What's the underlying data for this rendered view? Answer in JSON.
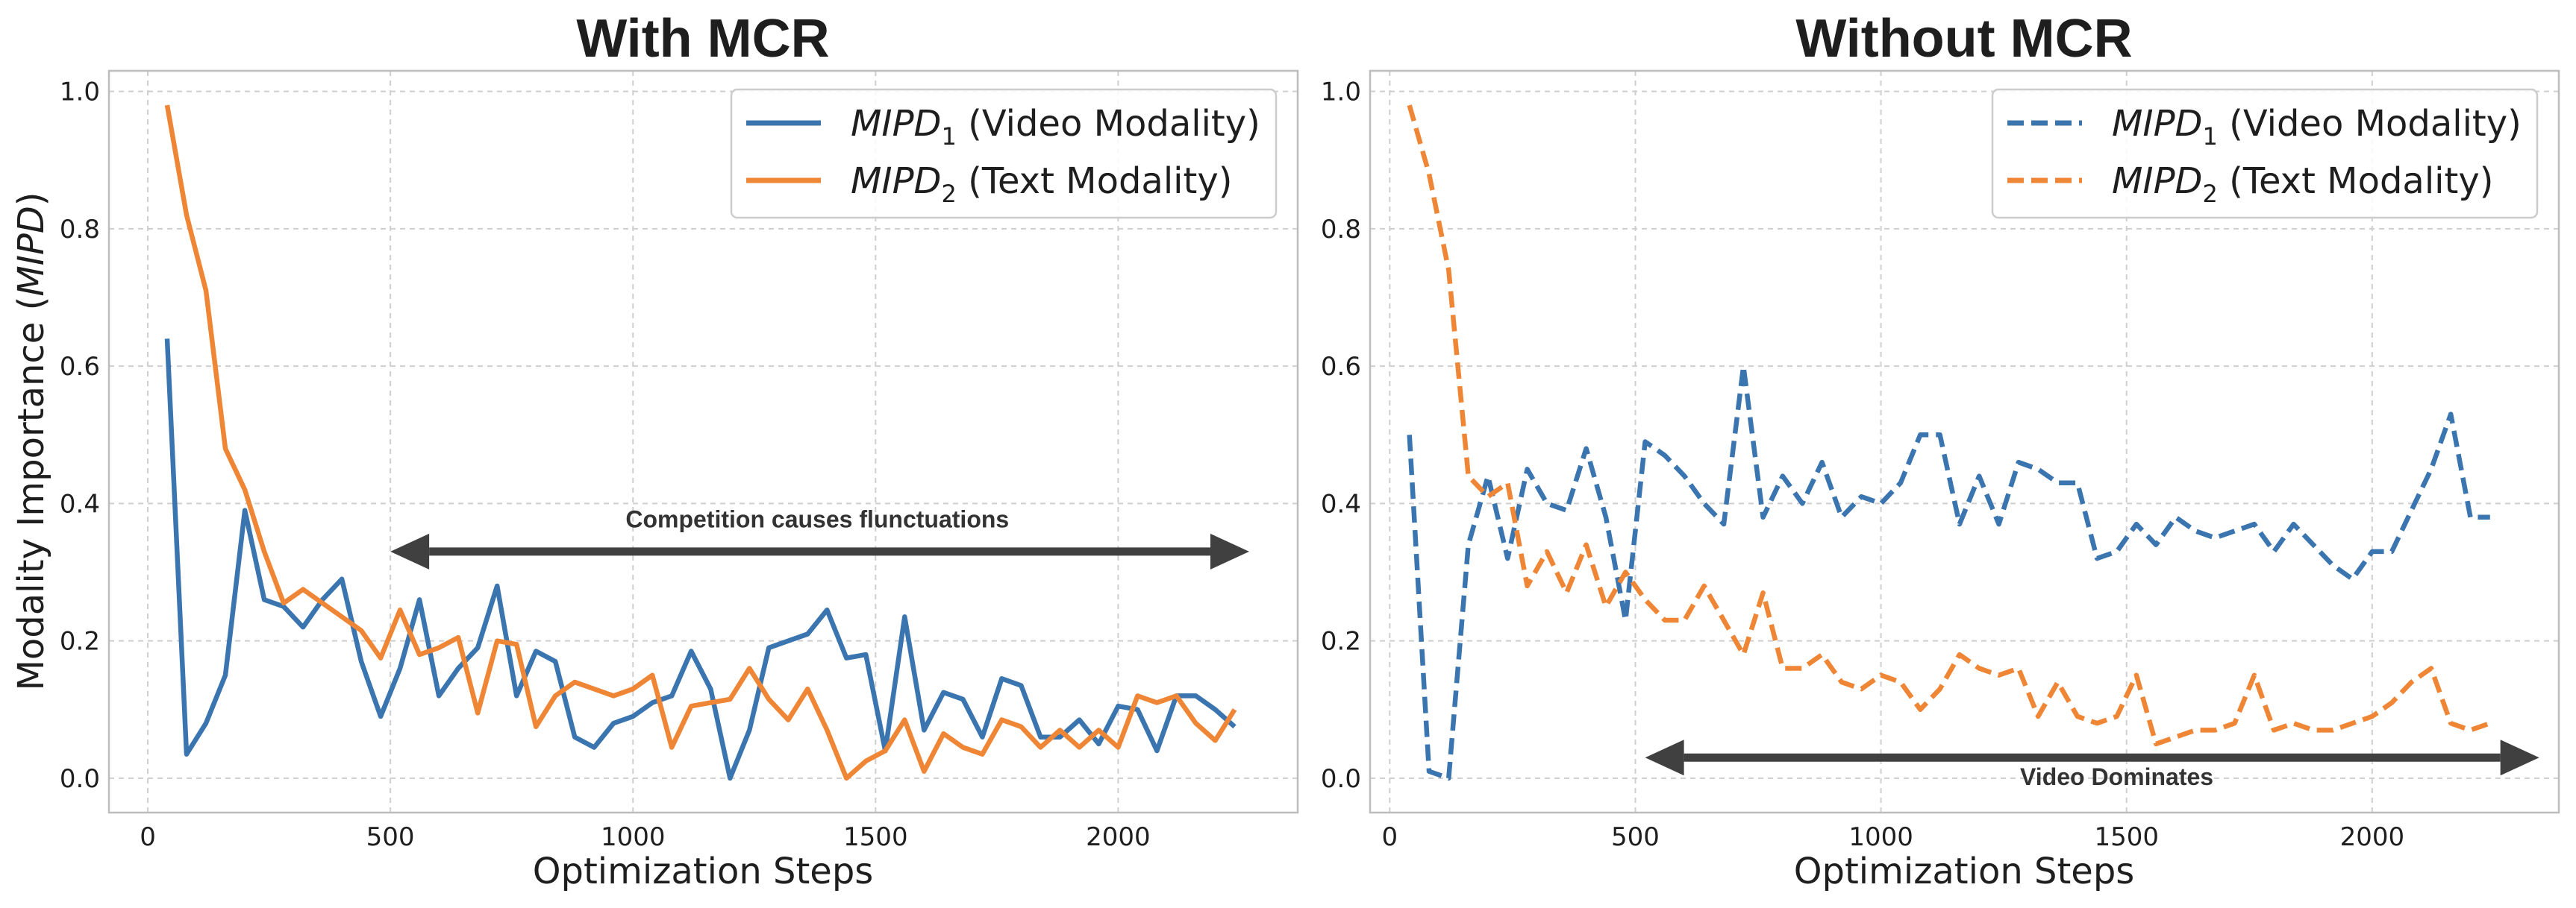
{
  "chart_data": [
    {
      "type": "line",
      "title": "With MCR",
      "xlabel": "Optimization Steps",
      "ylabel_prefix": "Modality Importance (",
      "ylabel_var": "MIPD",
      "ylabel_suffix": ")",
      "xlim": [
        -80,
        2370
      ],
      "ylim": [
        -0.05,
        1.03
      ],
      "xticks": [
        0,
        500,
        1000,
        1500,
        2000
      ],
      "xtick_labels": [
        "0",
        "500",
        "1000",
        "1500",
        "2000"
      ],
      "yticks": [
        0.0,
        0.2,
        0.4,
        0.6,
        0.8,
        1.0
      ],
      "ytick_labels": [
        "0.0",
        "0.2",
        "0.4",
        "0.6",
        "0.8",
        "1.0"
      ],
      "grid": true,
      "legend_position": "upper-right",
      "line_style": "solid",
      "x": [
        40,
        80,
        120,
        160,
        200,
        240,
        280,
        320,
        360,
        400,
        440,
        480,
        520,
        560,
        600,
        640,
        680,
        720,
        760,
        800,
        840,
        880,
        920,
        960,
        1000,
        1040,
        1080,
        1120,
        1160,
        1200,
        1240,
        1280,
        1320,
        1360,
        1400,
        1440,
        1480,
        1520,
        1560,
        1600,
        1640,
        1680,
        1720,
        1760,
        1800,
        1840,
        1880,
        1920,
        1960,
        2000,
        2040,
        2080,
        2120,
        2160,
        2200,
        2240
      ],
      "series": [
        {
          "name": "MIPD",
          "subscript": "1",
          "legend_suffix": " (Video Modality)",
          "color": "#3b75af",
          "values": [
            0.64,
            0.035,
            0.08,
            0.15,
            0.39,
            0.26,
            0.25,
            0.22,
            0.26,
            0.29,
            0.17,
            0.09,
            0.16,
            0.26,
            0.12,
            0.16,
            0.19,
            0.28,
            0.12,
            0.185,
            0.17,
            0.06,
            0.045,
            0.08,
            0.09,
            0.11,
            0.12,
            0.185,
            0.13,
            0.0,
            0.07,
            0.19,
            0.2,
            0.21,
            0.245,
            0.175,
            0.18,
            0.04,
            0.235,
            0.07,
            0.125,
            0.115,
            0.06,
            0.145,
            0.135,
            0.06,
            0.06,
            0.085,
            0.05,
            0.105,
            0.1,
            0.04,
            0.12,
            0.12,
            0.1,
            0.075
          ]
        },
        {
          "name": "MIPD",
          "subscript": "2",
          "legend_suffix": " (Text Modality)",
          "color": "#ef8636",
          "values": [
            0.98,
            0.82,
            0.71,
            0.48,
            0.42,
            0.33,
            0.255,
            0.275,
            0.255,
            0.235,
            0.215,
            0.175,
            0.245,
            0.18,
            0.19,
            0.205,
            0.095,
            0.2,
            0.195,
            0.075,
            0.12,
            0.14,
            0.13,
            0.12,
            0.13,
            0.15,
            0.045,
            0.105,
            0.11,
            0.115,
            0.16,
            0.115,
            0.085,
            0.13,
            0.07,
            0.0,
            0.025,
            0.04,
            0.085,
            0.01,
            0.065,
            0.045,
            0.035,
            0.085,
            0.075,
            0.045,
            0.07,
            0.045,
            0.07,
            0.045,
            0.12,
            0.11,
            0.12,
            0.08,
            0.055,
            0.1
          ]
        }
      ],
      "annotation": {
        "text": "Competition causes flunctuations",
        "arrow_from_x": 500,
        "arrow_to_x": 2270,
        "arrow_y": 0.33,
        "text_x": 1380,
        "text_y": 0.365
      }
    },
    {
      "type": "line",
      "title": "Without MCR",
      "xlabel": "Optimization Steps",
      "xlim": [
        -40,
        2380
      ],
      "ylim": [
        -0.05,
        1.03
      ],
      "xticks": [
        0,
        500,
        1000,
        1500,
        2000
      ],
      "xtick_labels": [
        "0",
        "500",
        "1000",
        "1500",
        "2000"
      ],
      "yticks": [
        0.0,
        0.2,
        0.4,
        0.6,
        0.8,
        1.0
      ],
      "ytick_labels": [
        "0.0",
        "0.2",
        "0.4",
        "0.6",
        "0.8",
        "1.0"
      ],
      "grid": true,
      "legend_position": "upper-right",
      "line_style": "dashed",
      "x": [
        40,
        80,
        120,
        160,
        200,
        240,
        280,
        320,
        360,
        400,
        440,
        480,
        520,
        560,
        600,
        640,
        680,
        720,
        760,
        800,
        840,
        880,
        920,
        960,
        1000,
        1040,
        1080,
        1120,
        1160,
        1200,
        1240,
        1280,
        1320,
        1360,
        1400,
        1440,
        1480,
        1520,
        1560,
        1600,
        1640,
        1680,
        1720,
        1760,
        1800,
        1840,
        1880,
        1920,
        1960,
        2000,
        2040,
        2080,
        2120,
        2160,
        2200,
        2240
      ],
      "series": [
        {
          "name": "MIPD",
          "subscript": "1",
          "legend_suffix": " (Video Modality)",
          "color": "#3b75af",
          "values": [
            0.5,
            0.01,
            0.0,
            0.34,
            0.44,
            0.32,
            0.45,
            0.4,
            0.39,
            0.48,
            0.38,
            0.23,
            0.49,
            0.47,
            0.44,
            0.4,
            0.37,
            0.6,
            0.38,
            0.44,
            0.4,
            0.46,
            0.38,
            0.41,
            0.4,
            0.43,
            0.5,
            0.5,
            0.37,
            0.44,
            0.37,
            0.46,
            0.45,
            0.43,
            0.43,
            0.32,
            0.33,
            0.37,
            0.34,
            0.38,
            0.36,
            0.35,
            0.36,
            0.37,
            0.33,
            0.37,
            0.34,
            0.31,
            0.29,
            0.33,
            0.33,
            0.39,
            0.45,
            0.53,
            0.38,
            0.38
          ]
        },
        {
          "name": "MIPD",
          "subscript": "2",
          "legend_suffix": " (Text Modality)",
          "color": "#ef8636",
          "values": [
            0.98,
            0.88,
            0.74,
            0.44,
            0.41,
            0.43,
            0.28,
            0.33,
            0.27,
            0.34,
            0.25,
            0.3,
            0.26,
            0.23,
            0.23,
            0.28,
            0.23,
            0.18,
            0.27,
            0.16,
            0.16,
            0.18,
            0.14,
            0.13,
            0.15,
            0.14,
            0.1,
            0.13,
            0.18,
            0.16,
            0.15,
            0.16,
            0.09,
            0.14,
            0.09,
            0.08,
            0.09,
            0.15,
            0.05,
            0.06,
            0.07,
            0.07,
            0.08,
            0.15,
            0.07,
            0.08,
            0.07,
            0.07,
            0.08,
            0.09,
            0.11,
            0.14,
            0.16,
            0.08,
            0.07,
            0.08
          ]
        }
      ],
      "annotation": {
        "text": "Video Dominates",
        "arrow_from_x": 520,
        "arrow_to_x": 2340,
        "arrow_y": 0.03,
        "text_x": 1480,
        "text_y": -0.01
      }
    }
  ]
}
